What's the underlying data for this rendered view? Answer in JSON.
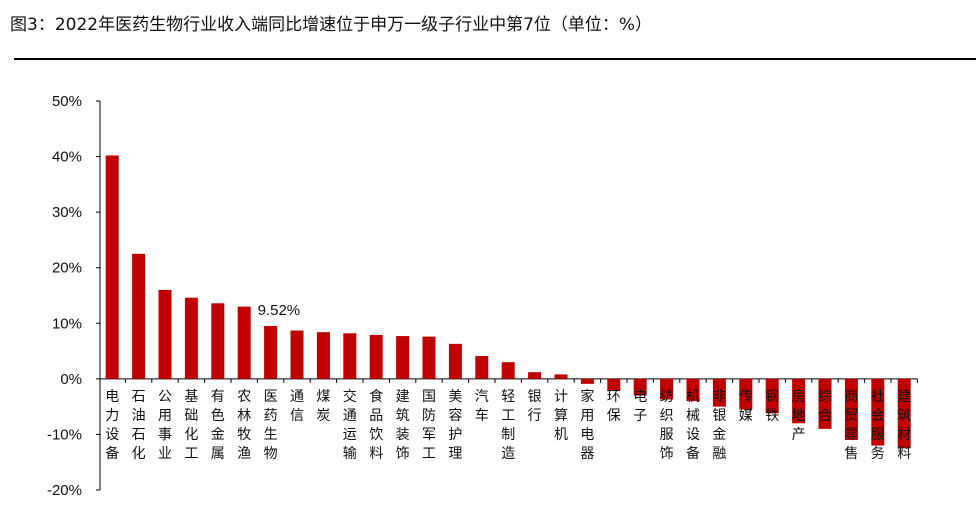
{
  "figure_title": "图3：2022年医药生物行业收入端同比增速位于申万一级子行业中第7位（单位：%）",
  "colors": {
    "bar": "#c00000",
    "axis": "#000000"
  },
  "chart_data": {
    "type": "bar",
    "title": "",
    "xlabel": "",
    "ylabel": "",
    "ylim": [
      -20,
      50
    ],
    "ytick_values": [
      -20,
      -10,
      0,
      10,
      20,
      30,
      40,
      50
    ],
    "ytick_labels": [
      "-20%",
      "-10%",
      "0%",
      "10%",
      "20%",
      "30%",
      "40%",
      "50%"
    ],
    "grid": false,
    "categories": [
      "电力设备",
      "石油石化",
      "公用事业",
      "基础化工",
      "有色金属",
      "农林牧渔",
      "医药生物",
      "通信",
      "煤炭",
      "交通运输",
      "食品饮料",
      "建筑装饰",
      "国防军工",
      "美容护理",
      "汽车",
      "轻工制造",
      "银行",
      "计算机",
      "家用电器",
      "环保",
      "电子",
      "纺织服饰",
      "机械设备",
      "非银金融",
      "传媒",
      "钢铁",
      "房地产",
      "综合",
      "商贸零售",
      "社会服务",
      "建筑材料"
    ],
    "values": [
      40.2,
      22.5,
      16.0,
      14.6,
      13.6,
      13.0,
      9.52,
      8.7,
      8.4,
      8.2,
      7.9,
      7.7,
      7.6,
      6.3,
      4.1,
      3.0,
      1.2,
      0.8,
      -0.9,
      -2.2,
      -3.0,
      -3.7,
      -4.0,
      -5.0,
      -5.5,
      -6.2,
      -8.0,
      -9.0,
      -11.0,
      -12.0,
      -12.5
    ],
    "annotations": [
      {
        "category": "医药生物",
        "text": "9.52%"
      }
    ]
  }
}
